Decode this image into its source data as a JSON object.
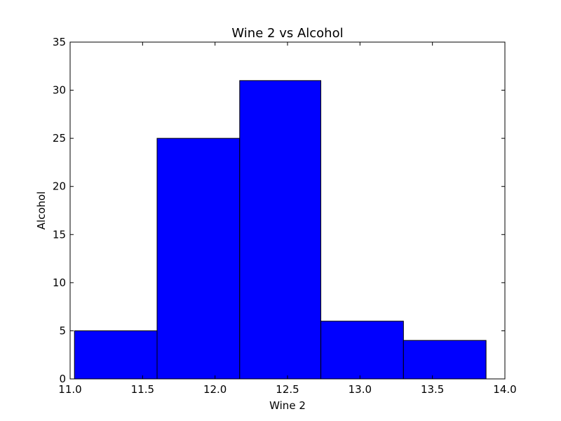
{
  "chart_data": {
    "type": "bar",
    "title": "Wine 2 vs Alcohol",
    "xlabel": "Wine 2",
    "ylabel": "Alcohol",
    "xlim": [
      11.0,
      14.0
    ],
    "ylim": [
      0,
      35
    ],
    "xticks": [
      "11.0",
      "11.5",
      "12.0",
      "12.5",
      "13.0",
      "13.5",
      "14.0"
    ],
    "yticks": [
      "0",
      "5",
      "10",
      "15",
      "20",
      "25",
      "30",
      "35"
    ],
    "bins": [
      {
        "x0": 11.03,
        "x1": 11.6,
        "value": 5
      },
      {
        "x0": 11.6,
        "x1": 12.17,
        "value": 25
      },
      {
        "x0": 12.17,
        "x1": 12.73,
        "value": 31
      },
      {
        "x0": 12.73,
        "x1": 13.3,
        "value": 6
      },
      {
        "x0": 13.3,
        "x1": 13.87,
        "value": 4
      }
    ],
    "bar_color": "#0000ff",
    "grid": false,
    "legend": "none"
  }
}
